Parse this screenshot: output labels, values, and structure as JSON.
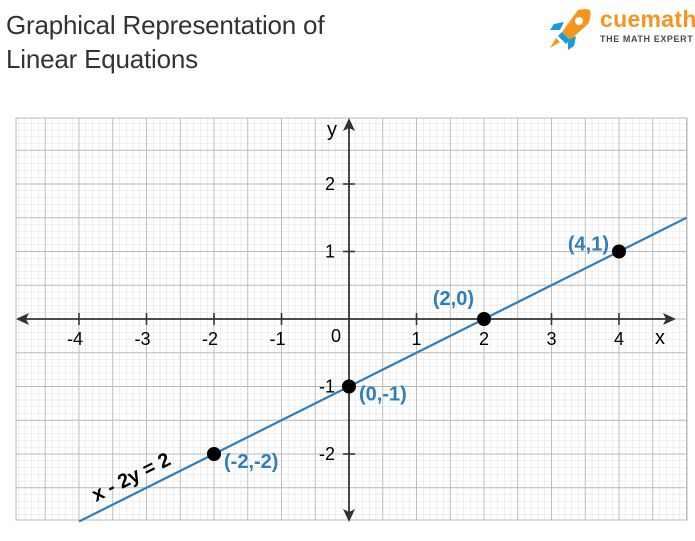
{
  "title": {
    "line1": "Graphical Representation of",
    "line2": "Linear Equations"
  },
  "logo": {
    "word": "cuemath",
    "tagline": "THE MATH EXPERT",
    "icon": "rocket-icon",
    "color_orange": "#f7941d",
    "color_blue": "#1a9ad6"
  },
  "graph": {
    "x_axis_label": "x",
    "y_axis_label": "y",
    "origin_label": "0",
    "x_ticks": [
      {
        "v": -4,
        "label": "-4"
      },
      {
        "v": -3,
        "label": "-3"
      },
      {
        "v": -2,
        "label": "-2"
      },
      {
        "v": -1,
        "label": "-1"
      },
      {
        "v": 1,
        "label": "1"
      },
      {
        "v": 2,
        "label": "2"
      },
      {
        "v": 3,
        "label": "3"
      },
      {
        "v": 4,
        "label": "4"
      }
    ],
    "y_ticks": [
      {
        "v": 2,
        "label": "2"
      },
      {
        "v": 1,
        "label": "1"
      },
      {
        "v": -1,
        "label": "-1"
      },
      {
        "v": -2,
        "label": "-2"
      }
    ],
    "points": [
      {
        "x": -2,
        "y": -2,
        "label": "(-2,-2)",
        "anchor": "right-below"
      },
      {
        "x": 0,
        "y": -1,
        "label": "(0,-1)",
        "anchor": "right-below"
      },
      {
        "x": 2,
        "y": 0,
        "label": "(2,0)",
        "anchor": "left-above"
      },
      {
        "x": 4,
        "y": 1,
        "label": "(4,1)",
        "anchor": "left"
      }
    ],
    "line": {
      "equation": "x - 2y = 2",
      "slope": 0.5,
      "intercept": -1,
      "x_start": -4,
      "x_end": 5
    },
    "colors": {
      "line": "#2c7fbf",
      "label": "#2c7fbf",
      "minor_grid": "#e2e2e2",
      "major_grid": "#b9b9b9",
      "axis": "#333333"
    }
  }
}
